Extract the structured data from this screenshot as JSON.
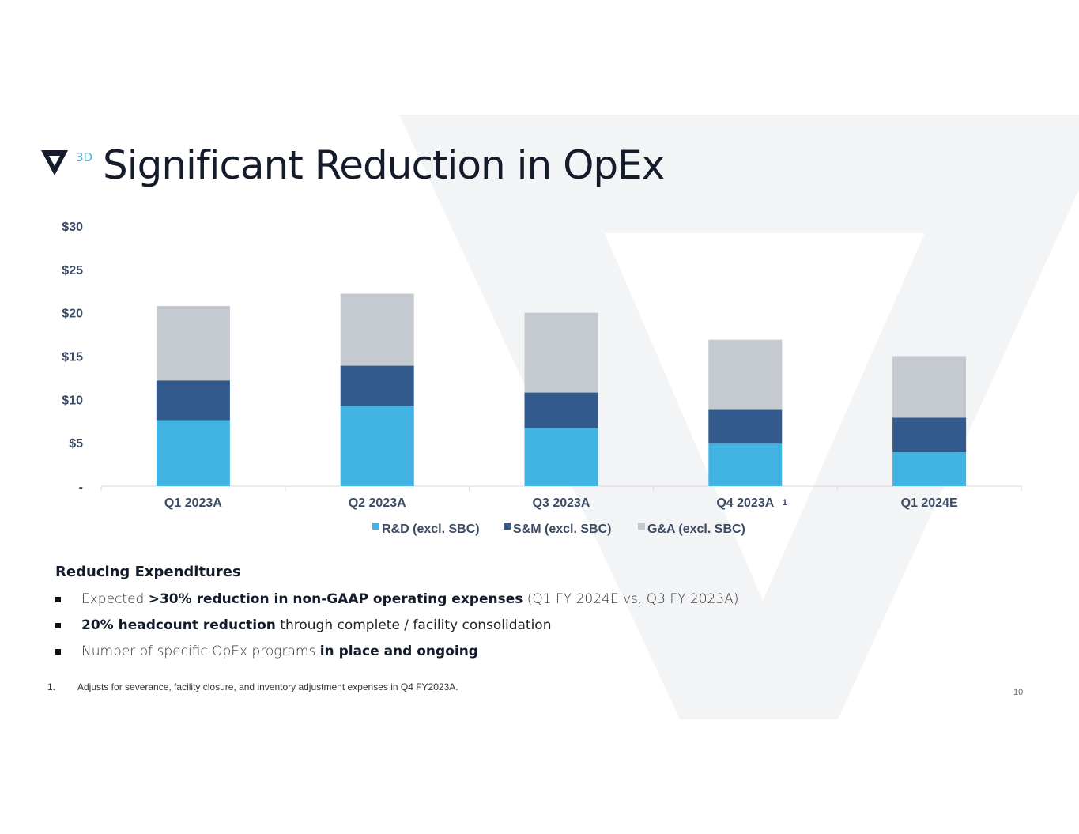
{
  "header": {
    "logo_text": "3D",
    "title": "Significant Reduction in OpEx"
  },
  "colors": {
    "rd": "#41b4e4",
    "sm": "#325a8c",
    "ga": "#c5c9d0",
    "axis_text": "#3b4b63",
    "watermark": "#f3f4f6"
  },
  "chart_data": {
    "type": "bar",
    "stacked": true,
    "categories": [
      "Q1 2023A",
      "Q2 2023A",
      "Q3 2023A",
      "Q4 2023A",
      "Q1 2024E"
    ],
    "category_notes": [
      "",
      "",
      "",
      "1",
      ""
    ],
    "series": [
      {
        "name": "R&D (excl. SBC)",
        "values": [
          7.6,
          9.3,
          6.7,
          4.9,
          3.9
        ]
      },
      {
        "name": "S&M (excl. SBC)",
        "values": [
          4.6,
          4.6,
          4.1,
          3.9,
          4.0
        ]
      },
      {
        "name": "G&A (excl. SBC)",
        "values": [
          8.6,
          8.3,
          9.2,
          8.1,
          7.1
        ]
      }
    ],
    "ylim": [
      0,
      30
    ],
    "yticks": [
      0,
      5,
      10,
      15,
      20,
      25,
      30
    ],
    "ytick_labels": [
      "-",
      "$5",
      "$10",
      "$15",
      "$20",
      "$25",
      "$30"
    ],
    "legend_position": "bottom",
    "grid": false
  },
  "body": {
    "subtitle": "Reducing Expenditures",
    "bullets": [
      {
        "a": "Expected ",
        "b": ">30% reduction in non-GAAP operating expenses",
        "c": " (Q1 FY 2024E vs. Q3 FY 2023A)"
      },
      {
        "a": "",
        "b": "20% headcount reduction",
        "c": " through complete / facility consolidation"
      },
      {
        "a": "Number of specific OpEx programs ",
        "b": "in place and ongoing",
        "c": ""
      }
    ]
  },
  "footnote": {
    "num": "1.",
    "text": "Adjusts for severance, facility closure, and inventory adjustment expenses in Q4 FY2023A."
  },
  "page_number": "10"
}
